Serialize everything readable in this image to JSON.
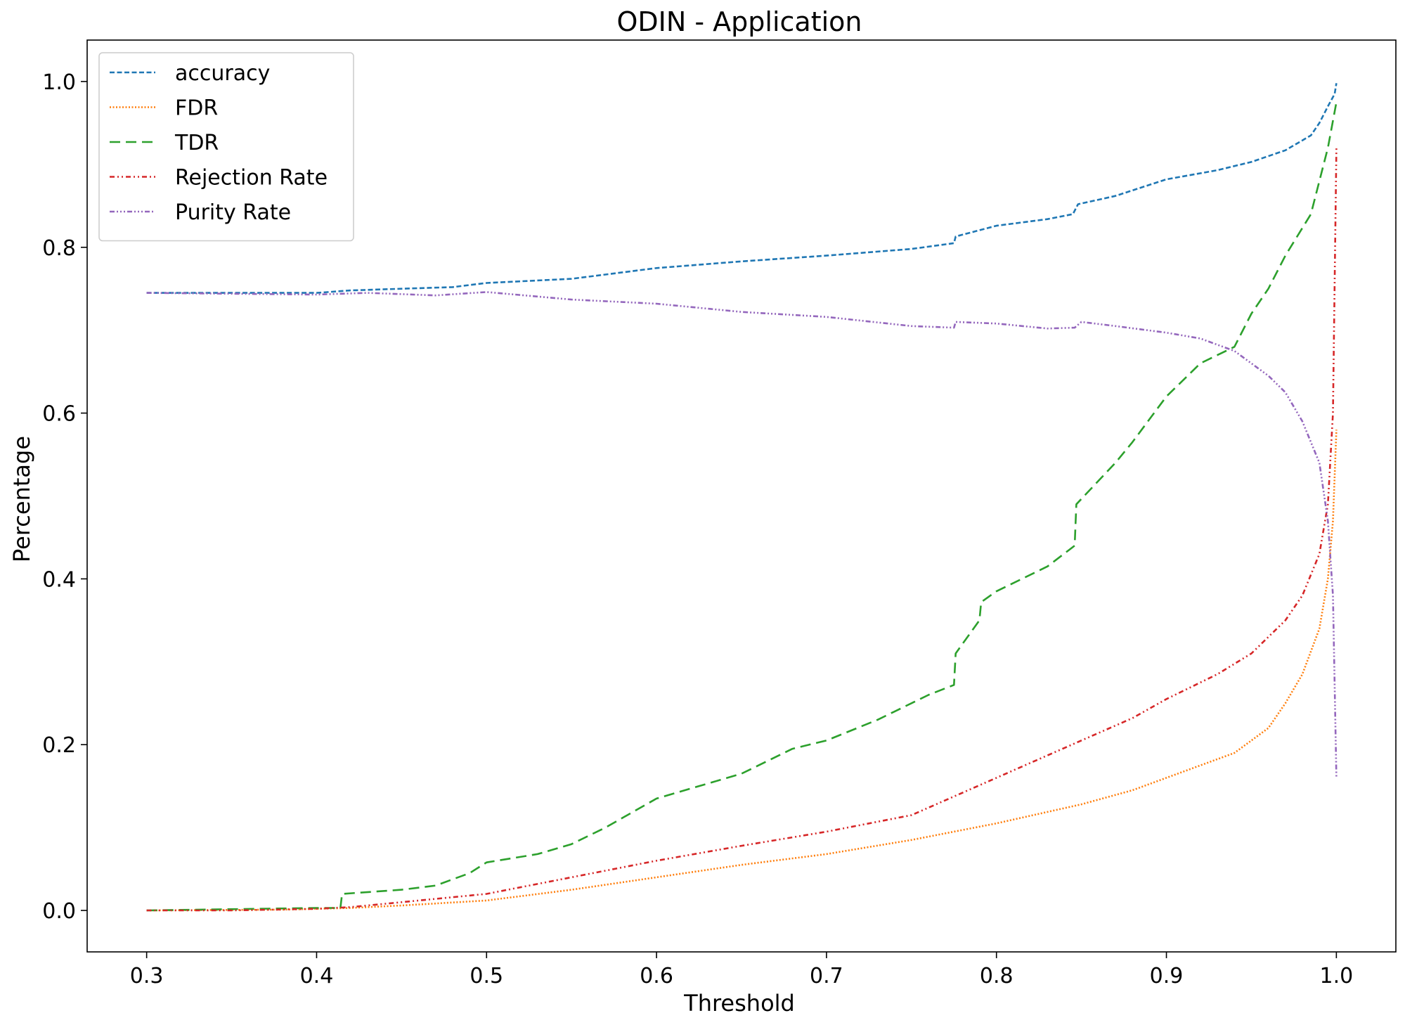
{
  "chart_data": {
    "type": "line",
    "title": "ODIN - Application",
    "xlabel": "Threshold",
    "ylabel": "Percentage",
    "xlim": [
      0.265,
      1.035
    ],
    "ylim": [
      -0.05,
      1.05
    ],
    "xticks": [
      0.3,
      0.4,
      0.5,
      0.6,
      0.7,
      0.8,
      0.9,
      1.0
    ],
    "xtick_labels": [
      "0.3",
      "0.4",
      "0.5",
      "0.6",
      "0.7",
      "0.8",
      "0.9",
      "1.0"
    ],
    "yticks": [
      0.0,
      0.2,
      0.4,
      0.6,
      0.8,
      1.0
    ],
    "ytick_labels": [
      "0.0",
      "0.2",
      "0.4",
      "0.6",
      "0.8",
      "1.0"
    ],
    "grid": false,
    "legend_position": "top-left",
    "series": [
      {
        "name": "accuracy",
        "color": "#1f77b4",
        "dash": "dashed",
        "points": [
          [
            0.3,
            0.745
          ],
          [
            0.35,
            0.745
          ],
          [
            0.4,
            0.745
          ],
          [
            0.42,
            0.748
          ],
          [
            0.45,
            0.75
          ],
          [
            0.48,
            0.752
          ],
          [
            0.5,
            0.757
          ],
          [
            0.55,
            0.762
          ],
          [
            0.6,
            0.775
          ],
          [
            0.65,
            0.783
          ],
          [
            0.7,
            0.79
          ],
          [
            0.75,
            0.798
          ],
          [
            0.775,
            0.805
          ],
          [
            0.776,
            0.813
          ],
          [
            0.8,
            0.826
          ],
          [
            0.83,
            0.834
          ],
          [
            0.845,
            0.84
          ],
          [
            0.848,
            0.852
          ],
          [
            0.87,
            0.862
          ],
          [
            0.9,
            0.882
          ],
          [
            0.93,
            0.893
          ],
          [
            0.95,
            0.903
          ],
          [
            0.97,
            0.917
          ],
          [
            0.985,
            0.935
          ],
          [
            0.99,
            0.95
          ],
          [
            0.995,
            0.97
          ],
          [
            0.999,
            0.985
          ],
          [
            1.0,
            0.998
          ]
        ]
      },
      {
        "name": "FDR",
        "color": "#ff7f0e",
        "dash": "dotted",
        "points": [
          [
            0.3,
            0.0
          ],
          [
            0.38,
            0.001
          ],
          [
            0.42,
            0.003
          ],
          [
            0.45,
            0.006
          ],
          [
            0.5,
            0.012
          ],
          [
            0.55,
            0.025
          ],
          [
            0.6,
            0.04
          ],
          [
            0.65,
            0.055
          ],
          [
            0.7,
            0.068
          ],
          [
            0.75,
            0.085
          ],
          [
            0.8,
            0.105
          ],
          [
            0.85,
            0.128
          ],
          [
            0.88,
            0.145
          ],
          [
            0.9,
            0.16
          ],
          [
            0.92,
            0.175
          ],
          [
            0.94,
            0.19
          ],
          [
            0.96,
            0.22
          ],
          [
            0.97,
            0.25
          ],
          [
            0.98,
            0.285
          ],
          [
            0.99,
            0.34
          ],
          [
            0.995,
            0.4
          ],
          [
            0.998,
            0.47
          ],
          [
            1.0,
            0.58
          ]
        ]
      },
      {
        "name": "TDR",
        "color": "#2ca02c",
        "dash": "longdash",
        "points": [
          [
            0.3,
            0.0
          ],
          [
            0.4,
            0.003
          ],
          [
            0.414,
            0.003
          ],
          [
            0.415,
            0.02
          ],
          [
            0.45,
            0.025
          ],
          [
            0.47,
            0.03
          ],
          [
            0.49,
            0.045
          ],
          [
            0.5,
            0.058
          ],
          [
            0.53,
            0.068
          ],
          [
            0.55,
            0.08
          ],
          [
            0.57,
            0.1
          ],
          [
            0.6,
            0.135
          ],
          [
            0.65,
            0.165
          ],
          [
            0.68,
            0.195
          ],
          [
            0.7,
            0.205
          ],
          [
            0.73,
            0.23
          ],
          [
            0.76,
            0.26
          ],
          [
            0.775,
            0.272
          ],
          [
            0.776,
            0.31
          ],
          [
            0.79,
            0.35
          ],
          [
            0.791,
            0.372
          ],
          [
            0.8,
            0.385
          ],
          [
            0.83,
            0.415
          ],
          [
            0.846,
            0.44
          ],
          [
            0.847,
            0.49
          ],
          [
            0.87,
            0.54
          ],
          [
            0.88,
            0.565
          ],
          [
            0.9,
            0.62
          ],
          [
            0.92,
            0.66
          ],
          [
            0.94,
            0.68
          ],
          [
            0.95,
            0.72
          ],
          [
            0.96,
            0.75
          ],
          [
            0.97,
            0.79
          ],
          [
            0.985,
            0.84
          ],
          [
            0.99,
            0.88
          ],
          [
            0.995,
            0.92
          ],
          [
            1.0,
            0.975
          ]
        ]
      },
      {
        "name": "Rejection Rate",
        "color": "#d62728",
        "dash": "dashdotdot",
        "points": [
          [
            0.3,
            0.0
          ],
          [
            0.35,
            0.0
          ],
          [
            0.4,
            0.002
          ],
          [
            0.42,
            0.004
          ],
          [
            0.45,
            0.01
          ],
          [
            0.5,
            0.02
          ],
          [
            0.55,
            0.04
          ],
          [
            0.6,
            0.06
          ],
          [
            0.65,
            0.078
          ],
          [
            0.7,
            0.095
          ],
          [
            0.75,
            0.115
          ],
          [
            0.8,
            0.16
          ],
          [
            0.85,
            0.205
          ],
          [
            0.88,
            0.232
          ],
          [
            0.9,
            0.255
          ],
          [
            0.93,
            0.285
          ],
          [
            0.95,
            0.31
          ],
          [
            0.97,
            0.35
          ],
          [
            0.98,
            0.38
          ],
          [
            0.99,
            0.43
          ],
          [
            0.995,
            0.49
          ],
          [
            0.998,
            0.6
          ],
          [
            1.0,
            0.92
          ]
        ]
      },
      {
        "name": "Purity Rate",
        "color": "#9467bd",
        "dash": "dashdotdotdot",
        "points": [
          [
            0.3,
            0.745
          ],
          [
            0.35,
            0.744
          ],
          [
            0.4,
            0.743
          ],
          [
            0.43,
            0.745
          ],
          [
            0.47,
            0.742
          ],
          [
            0.5,
            0.746
          ],
          [
            0.55,
            0.737
          ],
          [
            0.6,
            0.732
          ],
          [
            0.65,
            0.722
          ],
          [
            0.7,
            0.716
          ],
          [
            0.75,
            0.705
          ],
          [
            0.775,
            0.703
          ],
          [
            0.776,
            0.71
          ],
          [
            0.8,
            0.708
          ],
          [
            0.83,
            0.702
          ],
          [
            0.846,
            0.703
          ],
          [
            0.85,
            0.71
          ],
          [
            0.87,
            0.705
          ],
          [
            0.9,
            0.697
          ],
          [
            0.92,
            0.69
          ],
          [
            0.94,
            0.675
          ],
          [
            0.96,
            0.645
          ],
          [
            0.97,
            0.625
          ],
          [
            0.98,
            0.59
          ],
          [
            0.99,
            0.54
          ],
          [
            0.995,
            0.47
          ],
          [
            0.998,
            0.38
          ],
          [
            1.0,
            0.16
          ]
        ]
      }
    ]
  }
}
